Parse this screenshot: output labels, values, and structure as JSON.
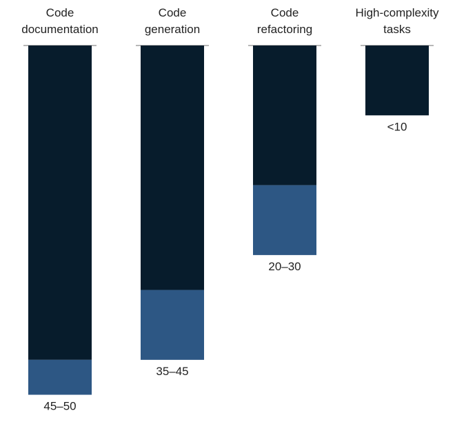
{
  "chart_data": {
    "type": "bar",
    "subtype": "stacked-range",
    "categories": [
      [
        "Code",
        "documentation"
      ],
      [
        "Code",
        "generation"
      ],
      [
        "Code",
        "refactoring"
      ],
      [
        "High-complexity",
        "tasks"
      ]
    ],
    "ranges": [
      {
        "low": 45,
        "high": 50
      },
      {
        "low": 35,
        "high": 45
      },
      {
        "low": 20,
        "high": 30
      },
      {
        "low": 0,
        "high": 10
      }
    ],
    "value_labels": [
      "45–50",
      "35–45",
      "20–30",
      "<10"
    ],
    "ylim": [
      0,
      50
    ],
    "orientation": "downward",
    "grid": false,
    "legend": "none",
    "colors": {
      "base": "#071c2c",
      "range": "#2d5784",
      "baseline": "#8c8c8c",
      "text": "#222222"
    }
  }
}
